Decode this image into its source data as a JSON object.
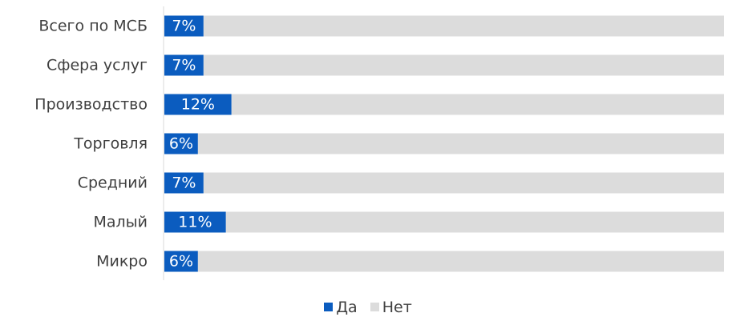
{
  "chart_data": {
    "type": "bar",
    "orientation": "horizontal",
    "stacked": true,
    "percent_stacked": true,
    "categories": [
      "Всего по МСБ",
      "Сфера услуг",
      "Производство",
      "Торговля",
      "Средний",
      "Малый",
      "Микро"
    ],
    "series": [
      {
        "name": "Да",
        "values": [
          7,
          7,
          12,
          6,
          7,
          11,
          6
        ],
        "color": "#0b5cbf",
        "data_labels": [
          "7%",
          "7%",
          "12%",
          "6%",
          "7%",
          "11%",
          "6%"
        ]
      },
      {
        "name": "Нет",
        "values": [
          93,
          93,
          88,
          94,
          93,
          89,
          94
        ],
        "color": "#dcdcdc"
      }
    ],
    "xlim": [
      0,
      100
    ],
    "grid": false,
    "legend": "bottom-center"
  }
}
